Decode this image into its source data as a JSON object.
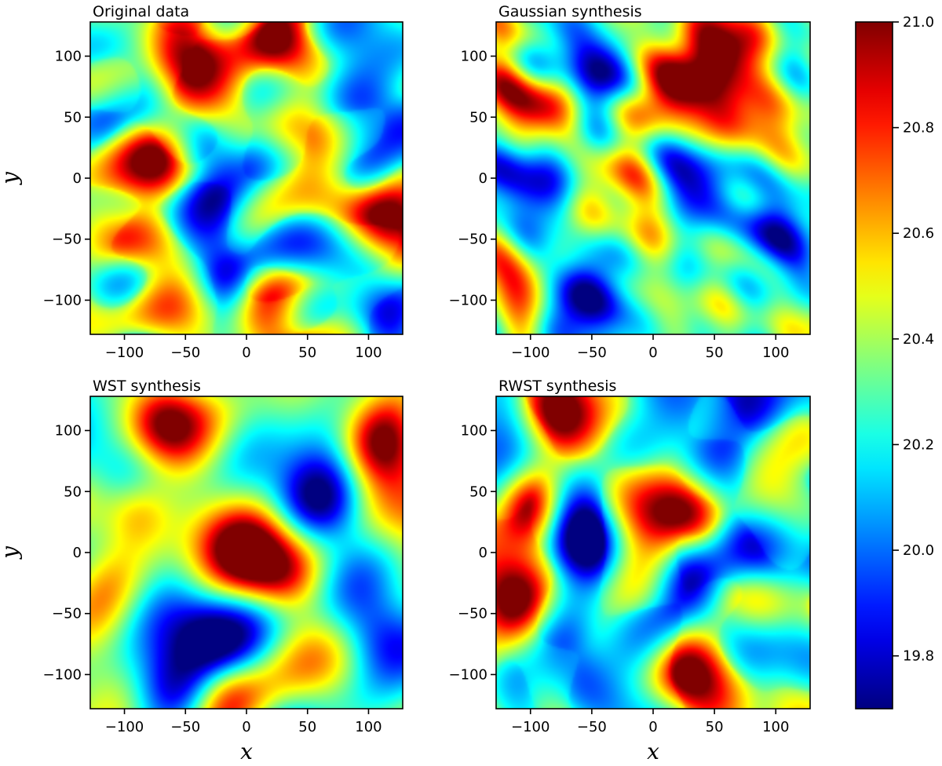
{
  "colormap": "jet",
  "chart_data": [
    {
      "type": "heatmap",
      "title": "Original data",
      "xlim": [
        -128,
        128
      ],
      "ylim": [
        -128,
        128
      ],
      "xticks": [
        -100,
        -50,
        0,
        50,
        100
      ],
      "yticks": [
        -100,
        -50,
        0,
        50,
        100
      ],
      "xtick_labels": [
        "−100",
        "−50",
        "0",
        "50",
        "100"
      ],
      "ytick_labels": [
        "−100",
        "−50",
        "0",
        "50",
        "100"
      ],
      "xlabel": "",
      "ylabel": "y",
      "hot_spots": [
        [
          -55,
          100,
          0.95
        ],
        [
          -70,
          20,
          0.85
        ],
        [
          15,
          -110,
          0.9
        ],
        [
          115,
          -40,
          0.9
        ],
        [
          -120,
          -40,
          0.75
        ],
        [
          20,
          120,
          0.8
        ],
        [
          40,
          40,
          0.7
        ]
      ],
      "cold_spots": [
        [
          -20,
          0,
          0.15
        ],
        [
          -10,
          -80,
          0.2
        ],
        [
          100,
          40,
          0.25
        ],
        [
          110,
          -100,
          0.25
        ],
        [
          -100,
          60,
          0.3
        ]
      ],
      "grain": "filamentary",
      "seed": 11
    },
    {
      "type": "heatmap",
      "title": "Gaussian synthesis",
      "xlim": [
        -128,
        128
      ],
      "ylim": [
        -128,
        128
      ],
      "xticks": [
        -100,
        -50,
        0,
        50,
        100
      ],
      "yticks": [
        -100,
        -50,
        0,
        50,
        100
      ],
      "xtick_labels": [
        "−100",
        "−50",
        "0",
        "50",
        "100"
      ],
      "ytick_labels": [
        "−100",
        "−50",
        "0",
        "50",
        "100"
      ],
      "xlabel": "",
      "ylabel": "",
      "hot_spots": [
        [
          20,
          75,
          1.0
        ],
        [
          60,
          110,
          0.85
        ],
        [
          -100,
          60,
          0.8
        ],
        [
          80,
          50,
          0.8
        ],
        [
          -20,
          0,
          0.7
        ],
        [
          -110,
          -80,
          0.7
        ]
      ],
      "cold_spots": [
        [
          -55,
          -100,
          0.05
        ],
        [
          -45,
          90,
          0.15
        ],
        [
          -110,
          0,
          0.12
        ],
        [
          100,
          -40,
          0.15
        ],
        [
          30,
          0,
          0.2
        ]
      ],
      "grain": "speckle",
      "seed": 23
    },
    {
      "type": "heatmap",
      "title": "WST synthesis",
      "xlim": [
        -128,
        128
      ],
      "ylim": [
        -128,
        128
      ],
      "xticks": [
        -100,
        -50,
        0,
        50,
        100
      ],
      "yticks": [
        -100,
        -50,
        0,
        50,
        100
      ],
      "xtick_labels": [
        "−100",
        "−50",
        "0",
        "50",
        "100"
      ],
      "ytick_labels": [
        "−100",
        "−50",
        "0",
        "50",
        "100"
      ],
      "xlabel": "x",
      "ylabel": "y",
      "hot_spots": [
        [
          -70,
          110,
          0.85
        ],
        [
          0,
          0,
          0.85
        ],
        [
          -90,
          35,
          0.8
        ],
        [
          110,
          90,
          0.8
        ],
        [
          30,
          -20,
          0.75
        ],
        [
          -20,
          -110,
          0.7
        ]
      ],
      "cold_spots": [
        [
          60,
          40,
          0.1
        ],
        [
          -30,
          -70,
          0.12
        ],
        [
          110,
          -70,
          0.2
        ],
        [
          -100,
          60,
          0.25
        ],
        [
          -60,
          -110,
          0.25
        ]
      ],
      "grain": "patchy",
      "seed": 37
    },
    {
      "type": "heatmap",
      "title": "RWST synthesis",
      "xlim": [
        -128,
        128
      ],
      "ylim": [
        -128,
        128
      ],
      "xticks": [
        -100,
        -50,
        0,
        50,
        100
      ],
      "yticks": [
        -100,
        -50,
        0,
        50,
        100
      ],
      "xtick_labels": [
        "−100",
        "−50",
        "0",
        "50",
        "100"
      ],
      "ytick_labels": [
        "−100",
        "−50",
        "0",
        "50",
        "100"
      ],
      "xlabel": "x",
      "ylabel": "",
      "hot_spots": [
        [
          -100,
          35,
          0.85
        ],
        [
          20,
          30,
          0.85
        ],
        [
          -110,
          -40,
          0.8
        ],
        [
          -80,
          110,
          0.75
        ],
        [
          20,
          -100,
          0.8
        ],
        [
          90,
          -40,
          0.75
        ]
      ],
      "cold_spots": [
        [
          -50,
          10,
          0.12
        ],
        [
          30,
          -30,
          0.15
        ],
        [
          100,
          10,
          0.12
        ],
        [
          60,
          110,
          0.2
        ],
        [
          -80,
          -90,
          0.25
        ]
      ],
      "grain": "filamentary",
      "seed": 53
    }
  ],
  "colorbar": {
    "vmin": 19.7,
    "vmax": 21.0,
    "ticks": [
      19.8,
      20.0,
      20.2,
      20.4,
      20.6,
      20.8,
      21.0
    ],
    "tick_labels": [
      "19.8",
      "20.0",
      "20.2",
      "20.4",
      "20.6",
      "20.8",
      "21.0"
    ]
  }
}
